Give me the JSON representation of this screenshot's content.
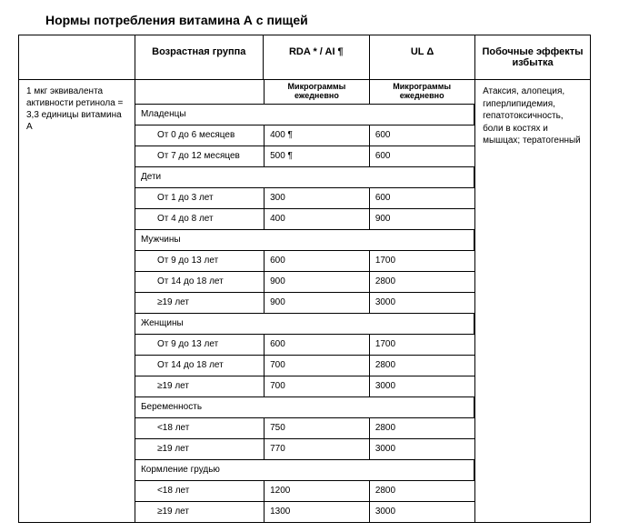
{
  "title": "Нормы потребления витамина А с пищей",
  "columns": {
    "age": "Возрастная группа",
    "rda": "RDA * / AI ¶",
    "ul": "UL Δ",
    "side": "Побочные эффекты избытка"
  },
  "units": {
    "rda": "Микрограммы ежедневно",
    "ul": "Микрограммы ежедневно"
  },
  "note": "1 мкг эквивалента активности ретинола = 3,3 единицы витамина А",
  "side_effects": "Атаксия, алопеция, гиперлипидемия, гепатотоксичность, боли в костях и мышцах; тератогенный",
  "sections": [
    {
      "label": "Младенцы",
      "rows": [
        {
          "age": "От 0 до 6 месяцев",
          "rda": "400 ¶",
          "ul": "600"
        },
        {
          "age": "От 7 до 12 месяцев",
          "rda": "500 ¶",
          "ul": "600"
        }
      ]
    },
    {
      "label": "Дети",
      "rows": [
        {
          "age": "От 1 до 3 лет",
          "rda": "300",
          "ul": "600"
        },
        {
          "age": "От 4 до 8 лет",
          "rda": "400",
          "ul": "900"
        }
      ]
    },
    {
      "label": "Мужчины",
      "rows": [
        {
          "age": "От 9 до 13 лет",
          "rda": "600",
          "ul": "1700"
        },
        {
          "age": "От 14 до 18 лет",
          "rda": "900",
          "ul": "2800"
        },
        {
          "age": "≥19 лет",
          "rda": "900",
          "ul": "3000"
        }
      ]
    },
    {
      "label": "Женщины",
      "rows": [
        {
          "age": "От 9 до 13 лет",
          "rda": "600",
          "ul": "1700"
        },
        {
          "age": "От 14 до 18 лет",
          "rda": "700",
          "ul": "2800"
        },
        {
          "age": "≥19 лет",
          "rda": "700",
          "ul": "3000"
        }
      ]
    },
    {
      "label": "Беременность",
      "rows": [
        {
          "age": "<18 лет",
          "rda": "750",
          "ul": "2800"
        },
        {
          "age": "≥19 лет",
          "rda": "770",
          "ul": "3000"
        }
      ]
    },
    {
      "label": "Кормление грудью",
      "rows": [
        {
          "age": "<18 лет",
          "rda": "1200",
          "ul": "2800"
        },
        {
          "age": "≥19 лет",
          "rda": "1300",
          "ul": "3000"
        }
      ]
    }
  ]
}
